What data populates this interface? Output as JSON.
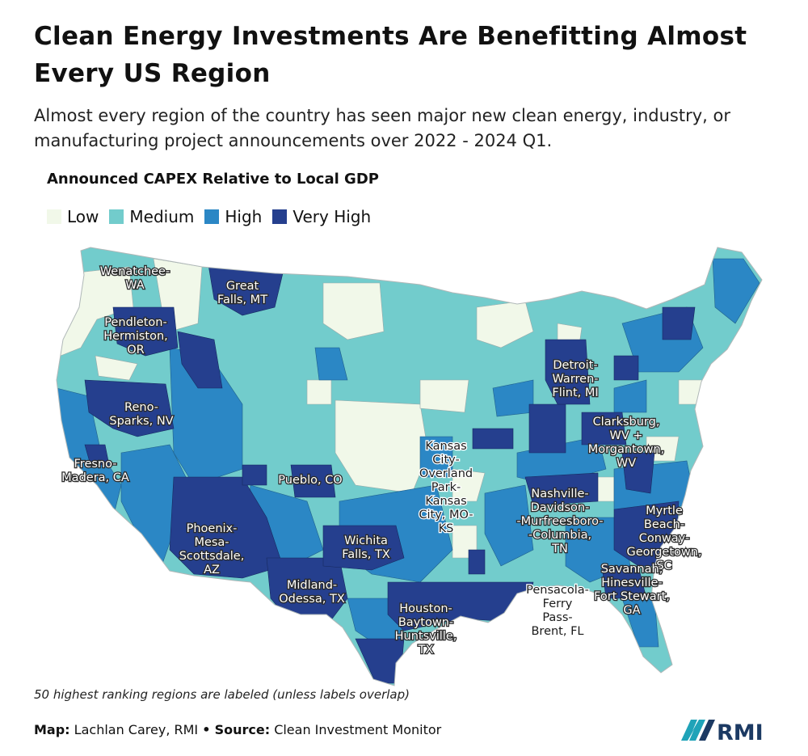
{
  "title": "Clean Energy Investments Are Benefitting Almost Every US Region",
  "subtitle": "Almost every region of the country has seen major new clean energy, industry, or manufacturing project announcements over 2022 - 2024 Q1.",
  "legend": {
    "title": "Announced CAPEX Relative to Local GDP",
    "items": [
      {
        "label": "Low",
        "color": "#f1f8e9"
      },
      {
        "label": "Medium",
        "color": "#72cccc"
      },
      {
        "label": "High",
        "color": "#2b87c5"
      },
      {
        "label": "Very High",
        "color": "#253f8e"
      }
    ]
  },
  "map": {
    "labels": [
      {
        "lines": [
          "Wenatchee-",
          "WA"
        ],
        "level": "Medium",
        "style": "light"
      },
      {
        "lines": [
          "Great",
          "Falls, MT"
        ],
        "level": "Very High",
        "style": "light"
      },
      {
        "lines": [
          "Pendleton-",
          "Hermiston,",
          "OR"
        ],
        "level": "Very High",
        "style": "light"
      },
      {
        "lines": [
          "Reno-",
          "Sparks, NV"
        ],
        "level": "Very High",
        "style": "light"
      },
      {
        "lines": [
          "Fresno-",
          "Madera, CA"
        ],
        "level": "High",
        "style": "light"
      },
      {
        "lines": [
          "Pueblo, CO"
        ],
        "level": "Very High",
        "style": "light"
      },
      {
        "lines": [
          "Phoenix-",
          "Mesa-",
          "Scottsdale,",
          "AZ"
        ],
        "level": "Very High",
        "style": "light"
      },
      {
        "lines": [
          "Wichita",
          "Falls, TX"
        ],
        "level": "Very High",
        "style": "light"
      },
      {
        "lines": [
          "Midland-",
          "Odessa, TX"
        ],
        "level": "Very High",
        "style": "light"
      },
      {
        "lines": [
          "Kansas",
          "City-",
          "Overland",
          "Park-",
          "Kansas",
          "City, MO-",
          "KS"
        ],
        "level": "Low",
        "style": "dark"
      },
      {
        "lines": [
          "Houston-",
          "Baytown-",
          "Huntsville,",
          "TX"
        ],
        "level": "Very High",
        "style": "light"
      },
      {
        "lines": [
          "Nashville-",
          "Davidson-",
          "-Murfreesboro-",
          "-Columbia,",
          "TN"
        ],
        "level": "Very High",
        "style": "light"
      },
      {
        "lines": [
          "Pensacola-",
          "Ferry",
          "Pass-",
          "Brent, FL"
        ],
        "level": "Low",
        "style": "dark"
      },
      {
        "lines": [
          "Detroit-",
          "Warren-",
          "Flint, MI"
        ],
        "level": "Very High",
        "style": "light"
      },
      {
        "lines": [
          "Clarksburg,",
          "WV +",
          "Morgantown,",
          "WV"
        ],
        "level": "Very High",
        "style": "light"
      },
      {
        "lines": [
          "Myrtle",
          "Beach-",
          "Conway-",
          "Georgetown,",
          "SC"
        ],
        "level": "Very High",
        "style": "light"
      },
      {
        "lines": [
          "Savannah,",
          "Hinesville-",
          "Fort Stewart,",
          "GA"
        ],
        "level": "Very High",
        "style": "light"
      }
    ]
  },
  "note": "50 highest ranking regions are labeled (unless labels overlap)",
  "credit": {
    "map_label": "Map:",
    "map_value": "Lachlan Carey, RMI",
    "separator": "•",
    "source_label": "Source:",
    "source_value": "Clean Investment Monitor"
  },
  "logo_text": "RMI"
}
